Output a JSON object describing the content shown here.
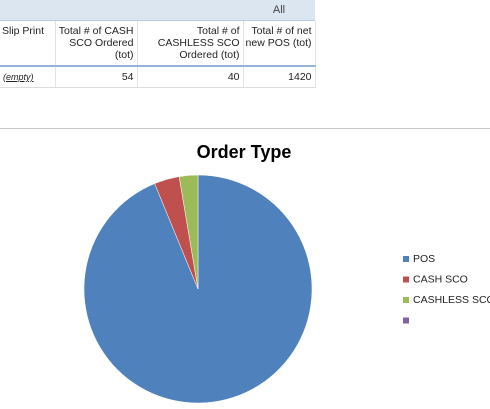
{
  "table": {
    "top_label": "All",
    "headers": [
      "Slip Print",
      "Total # of CASH SCO Ordered (tot)",
      "Total # of CASHLESS SCO Ordered (tot)",
      "Total # of net new POS (tot)"
    ],
    "rows": [
      [
        "(empty)",
        "54",
        "40",
        "1420"
      ]
    ]
  },
  "chart_data": {
    "type": "pie",
    "title": "Order Type",
    "categories": [
      "POS",
      "CASH SCO",
      "CASHLESS SCO",
      null
    ],
    "values": [
      1420,
      54,
      40,
      null
    ],
    "colors": [
      "#4f81bd",
      "#c0504d",
      "#9bbb59",
      "#8064a2"
    ]
  }
}
